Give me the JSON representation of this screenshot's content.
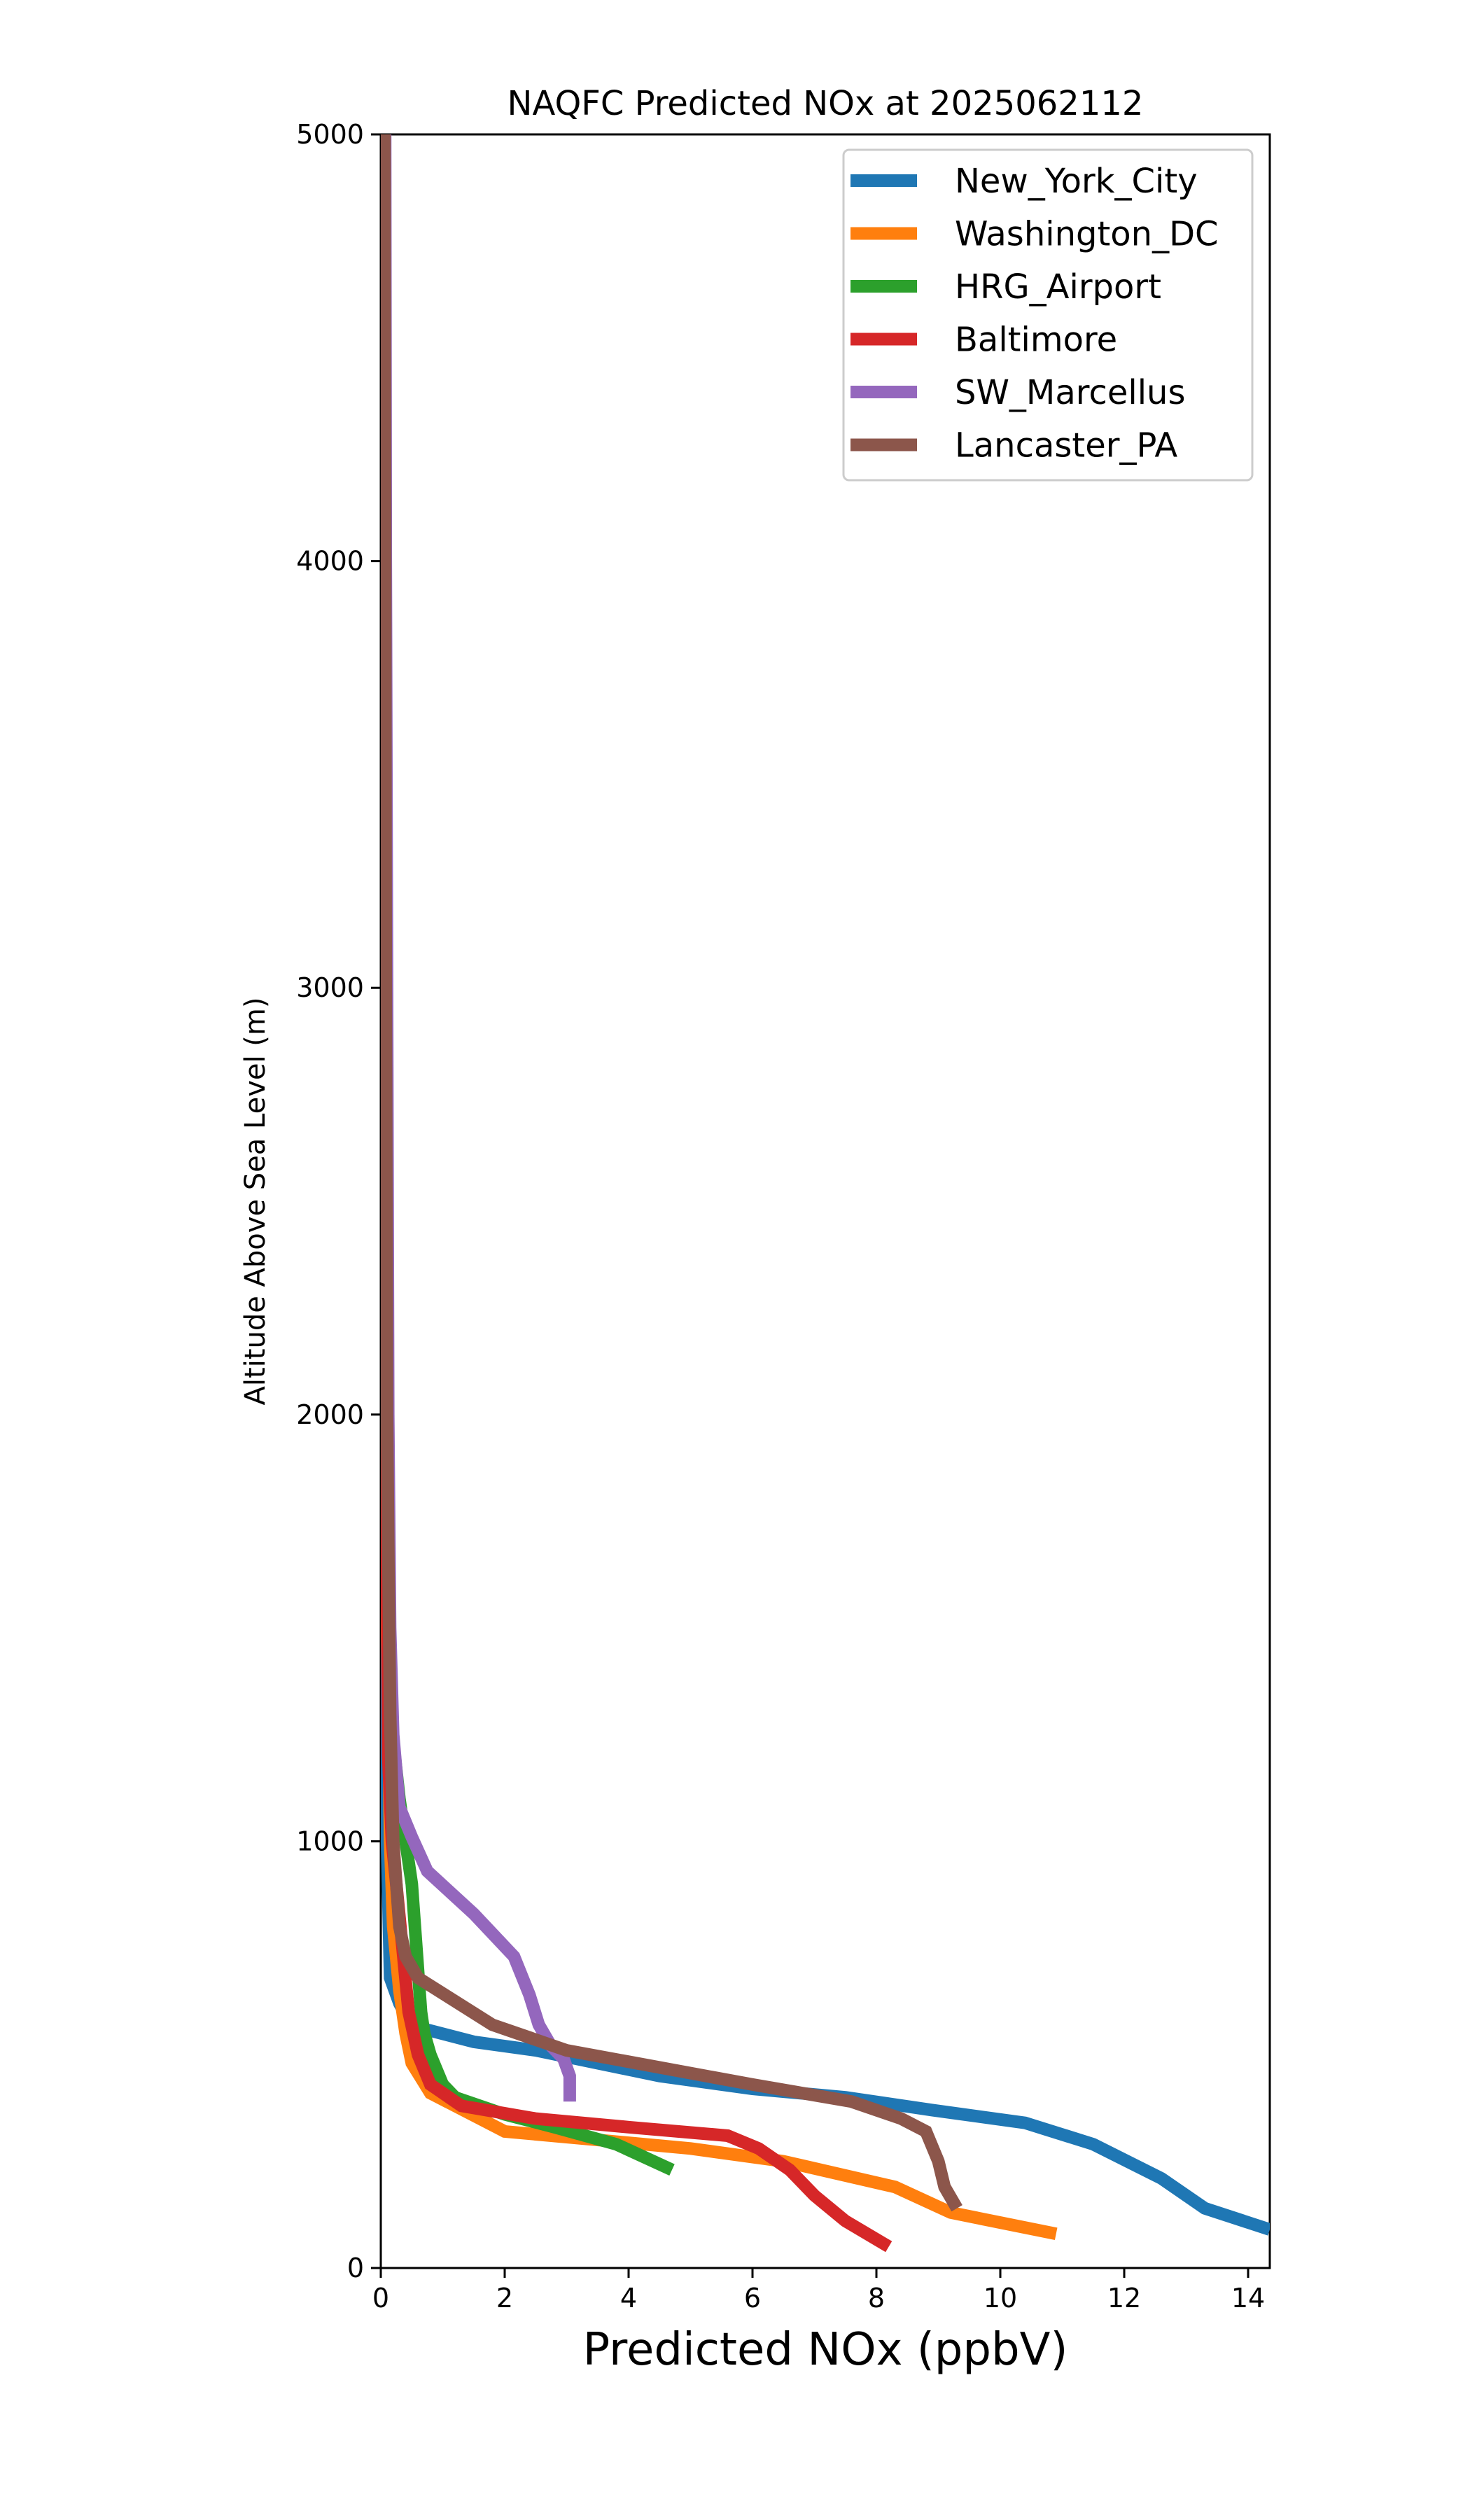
{
  "chart_data": {
    "type": "line",
    "title": "NAQFC Predicted NOx at 2025062112",
    "xlabel": "Predicted NOx (ppbV)",
    "ylabel": "Altitude Above Sea Level (m)",
    "xlim": [
      0,
      14.35
    ],
    "ylim": [
      0,
      5000
    ],
    "xticks": [
      "0",
      "2",
      "4",
      "6",
      "8",
      "10",
      "12",
      "14"
    ],
    "yticks": [
      "0",
      "1000",
      "2000",
      "3000",
      "4000",
      "5000"
    ],
    "grid": false,
    "legend_position": "top-right",
    "series": [
      {
        "name": "New_York_City",
        "color": "#1f77b4",
        "points": [
          [
            14.35,
            90
          ],
          [
            13.3,
            140
          ],
          [
            12.6,
            210
          ],
          [
            11.5,
            290
          ],
          [
            10.4,
            340
          ],
          [
            8.9,
            370
          ],
          [
            7.5,
            400
          ],
          [
            6.0,
            420
          ],
          [
            4.5,
            450
          ],
          [
            3.5,
            480
          ],
          [
            2.5,
            510
          ],
          [
            1.5,
            530
          ],
          [
            0.7,
            560
          ],
          [
            0.45,
            580
          ],
          [
            0.3,
            620
          ],
          [
            0.15,
            680
          ],
          [
            0.1,
            1000
          ],
          [
            0.09,
            2000
          ],
          [
            0.07,
            3000
          ],
          [
            0.06,
            4000
          ],
          [
            0.05,
            5000
          ]
        ]
      },
      {
        "name": "Washington_DC",
        "color": "#ff7f0e",
        "points": [
          [
            10.9,
            80
          ],
          [
            9.2,
            130
          ],
          [
            8.3,
            190
          ],
          [
            6.5,
            250
          ],
          [
            5.0,
            280
          ],
          [
            3.5,
            300
          ],
          [
            2.0,
            320
          ],
          [
            1.2,
            380
          ],
          [
            0.8,
            410
          ],
          [
            0.5,
            480
          ],
          [
            0.4,
            550
          ],
          [
            0.3,
            650
          ],
          [
            0.2,
            800
          ],
          [
            0.15,
            1000
          ],
          [
            0.1,
            1500
          ],
          [
            0.08,
            2000
          ],
          [
            0.07,
            3000
          ],
          [
            0.06,
            4000
          ],
          [
            0.05,
            5000
          ]
        ]
      },
      {
        "name": "HRG_Airport",
        "color": "#2ca02c",
        "points": [
          [
            4.7,
            230
          ],
          [
            3.8,
            290
          ],
          [
            2.8,
            330
          ],
          [
            2.0,
            360
          ],
          [
            1.2,
            400
          ],
          [
            1.0,
            430
          ],
          [
            0.8,
            500
          ],
          [
            0.7,
            550
          ],
          [
            0.65,
            600
          ],
          [
            0.6,
            700
          ],
          [
            0.5,
            900
          ],
          [
            0.4,
            1000
          ],
          [
            0.3,
            1100
          ],
          [
            0.15,
            1300
          ],
          [
            0.1,
            1800
          ],
          [
            0.08,
            3000
          ],
          [
            0.06,
            4000
          ],
          [
            0.05,
            5000
          ]
        ]
      },
      {
        "name": "Baltimore",
        "color": "#d62728",
        "points": [
          [
            8.2,
            50
          ],
          [
            7.5,
            110
          ],
          [
            7.0,
            170
          ],
          [
            6.6,
            230
          ],
          [
            6.1,
            280
          ],
          [
            5.6,
            310
          ],
          [
            4.0,
            330
          ],
          [
            2.5,
            350
          ],
          [
            1.3,
            380
          ],
          [
            0.8,
            430
          ],
          [
            0.6,
            500
          ],
          [
            0.45,
            600
          ],
          [
            0.35,
            750
          ],
          [
            0.25,
            900
          ],
          [
            0.18,
            1000
          ],
          [
            0.12,
            1200
          ],
          [
            0.08,
            2000
          ],
          [
            0.06,
            3000
          ],
          [
            0.05,
            4000
          ],
          [
            0.04,
            5000
          ]
        ]
      },
      {
        "name": "SW_Marcellus",
        "color": "#9467bd",
        "points": [
          [
            3.05,
            390
          ],
          [
            3.05,
            450
          ],
          [
            2.95,
            490
          ],
          [
            2.75,
            520
          ],
          [
            2.55,
            570
          ],
          [
            2.4,
            640
          ],
          [
            2.15,
            730
          ],
          [
            1.5,
            830
          ],
          [
            0.75,
            930
          ],
          [
            0.5,
            1010
          ],
          [
            0.3,
            1080
          ],
          [
            0.2,
            1250
          ],
          [
            0.15,
            1500
          ],
          [
            0.12,
            2000
          ],
          [
            0.1,
            3000
          ],
          [
            0.08,
            4000
          ],
          [
            0.07,
            5000
          ]
        ]
      },
      {
        "name": "Lancaster_PA",
        "color": "#8c564b",
        "points": [
          [
            9.3,
            140
          ],
          [
            9.1,
            190
          ],
          [
            9.0,
            250
          ],
          [
            8.8,
            320
          ],
          [
            8.4,
            350
          ],
          [
            7.6,
            390
          ],
          [
            6.0,
            430
          ],
          [
            4.5,
            470
          ],
          [
            3.0,
            510
          ],
          [
            1.8,
            570
          ],
          [
            0.6,
            680
          ],
          [
            0.4,
            730
          ],
          [
            0.3,
            800
          ],
          [
            0.2,
            1000
          ],
          [
            0.15,
            1300
          ],
          [
            0.12,
            1700
          ],
          [
            0.1,
            2000
          ],
          [
            0.08,
            3000
          ],
          [
            0.07,
            4000
          ],
          [
            0.06,
            5000
          ]
        ]
      }
    ]
  }
}
